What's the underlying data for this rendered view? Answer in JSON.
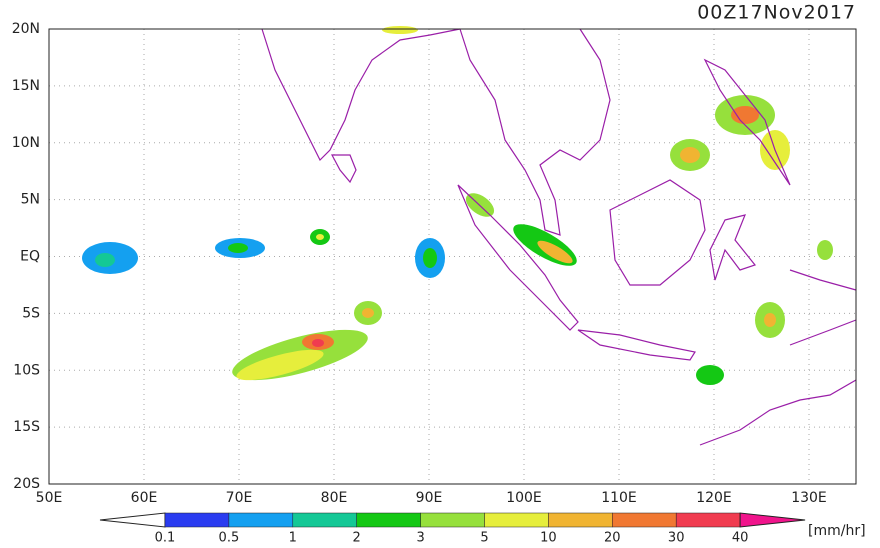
{
  "header": {
    "timestamp": "00Z17Nov2017"
  },
  "axes": {
    "lat_labels": [
      "20N",
      "15N",
      "10N",
      "5N",
      "EQ",
      "5S",
      "10S",
      "15S",
      "20S"
    ],
    "lon_labels": [
      "50E",
      "60E",
      "70E",
      "80E",
      "90E",
      "100E",
      "110E",
      "120E",
      "130E"
    ]
  },
  "colorbar": {
    "labels": [
      "0.1",
      "0.5",
      "1",
      "2",
      "3",
      "5",
      "10",
      "20",
      "30",
      "40"
    ],
    "unit": "[mm/hr]",
    "colors": [
      "#ffffff",
      "#2a3cf0",
      "#14a0f0",
      "#14c896",
      "#14c814",
      "#96e03c",
      "#e6ee3c",
      "#f0b432",
      "#f07832",
      "#f03c50",
      "#f0148c"
    ]
  }
}
